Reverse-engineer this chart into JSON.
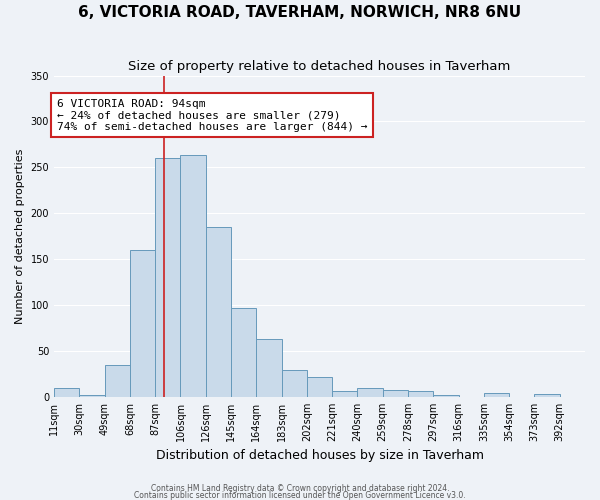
{
  "title": "6, VICTORIA ROAD, TAVERHAM, NORWICH, NR8 6NU",
  "subtitle": "Size of property relative to detached houses in Taverham",
  "xlabel": "Distribution of detached houses by size in Taverham",
  "ylabel": "Number of detached properties",
  "bar_color": "#c9daea",
  "bar_edge_color": "#6699bb",
  "background_color": "#eef2f7",
  "grid_color": "#ffffff",
  "annotation_text": "6 VICTORIA ROAD: 94sqm\n← 24% of detached houses are smaller (279)\n74% of semi-detached houses are larger (844) →",
  "vline_x": 94,
  "vline_color": "#cc2222",
  "bin_edges": [
    11,
    30,
    49,
    68,
    87,
    106,
    125,
    144,
    163,
    182,
    201,
    220,
    239,
    258,
    277,
    296,
    315,
    334,
    353,
    372,
    391
  ],
  "bin_values": [
    10,
    2,
    35,
    160,
    260,
    263,
    185,
    97,
    63,
    29,
    22,
    6,
    10,
    8,
    6,
    2,
    0,
    4,
    0,
    3
  ],
  "tick_labels": [
    "11sqm",
    "30sqm",
    "49sqm",
    "68sqm",
    "87sqm",
    "106sqm",
    "126sqm",
    "145sqm",
    "164sqm",
    "183sqm",
    "202sqm",
    "221sqm",
    "240sqm",
    "259sqm",
    "278sqm",
    "297sqm",
    "316sqm",
    "335sqm",
    "354sqm",
    "373sqm",
    "392sqm"
  ],
  "ylim": [
    0,
    350
  ],
  "yticks": [
    0,
    50,
    100,
    150,
    200,
    250,
    300,
    350
  ],
  "footer_lines": [
    "Contains HM Land Registry data © Crown copyright and database right 2024.",
    "Contains public sector information licensed under the Open Government Licence v3.0."
  ],
  "title_fontsize": 11,
  "subtitle_fontsize": 9.5,
  "xlabel_fontsize": 9,
  "ylabel_fontsize": 8,
  "tick_fontsize": 7,
  "annotation_fontsize": 8,
  "annotation_box_color": "white",
  "annotation_box_edge": "#cc2222",
  "figsize": [
    6.0,
    5.0
  ],
  "dpi": 100
}
